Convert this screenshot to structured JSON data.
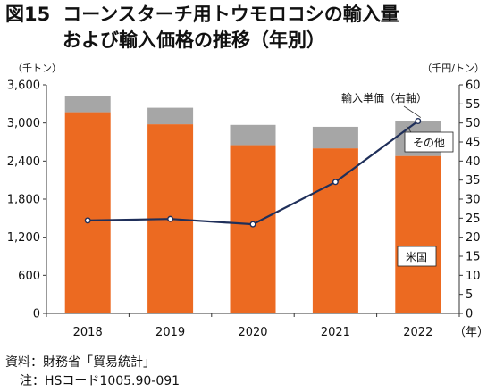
{
  "figure": {
    "number": "図15",
    "title_line1": "コーンスターチ用トウモロコシの輸入量",
    "title_line2": "および輸入価格の推移（年別）"
  },
  "source": {
    "line": "資料：財務省「貿易統計」",
    "note": "注：HSコード1005.90-091"
  },
  "chart_data": {
    "type": "bar",
    "stacked": true,
    "categories": [
      "2018",
      "2019",
      "2020",
      "2021",
      "2022"
    ],
    "series": [
      {
        "name": "米国",
        "values": [
          3170,
          2980,
          2650,
          2600,
          2480
        ],
        "color": "#ec6a21"
      },
      {
        "name": "その他",
        "values": [
          250,
          260,
          320,
          340,
          550
        ],
        "color": "#a6a6a6"
      }
    ],
    "line_series": {
      "name": "輸入単価（右軸）",
      "values": [
        24.4,
        24.8,
        23.4,
        34.5,
        50.5
      ],
      "color": "#1f2f5a"
    },
    "y_left": {
      "unit": "（千トン）",
      "ylim": [
        0,
        3600
      ],
      "ticks": [
        0,
        600,
        1200,
        1800,
        2400,
        3000,
        3600
      ],
      "tick_labels": [
        "0",
        "600",
        "1,200",
        "1,800",
        "2,400",
        "3,000",
        "3,600"
      ]
    },
    "y_right": {
      "unit": "（千円/トン）",
      "ylim": [
        0,
        60
      ],
      "ticks": [
        0,
        5,
        10,
        15,
        20,
        25,
        30,
        35,
        40,
        45,
        50,
        55,
        60
      ]
    },
    "x_unit": "（年）",
    "grid": false
  }
}
